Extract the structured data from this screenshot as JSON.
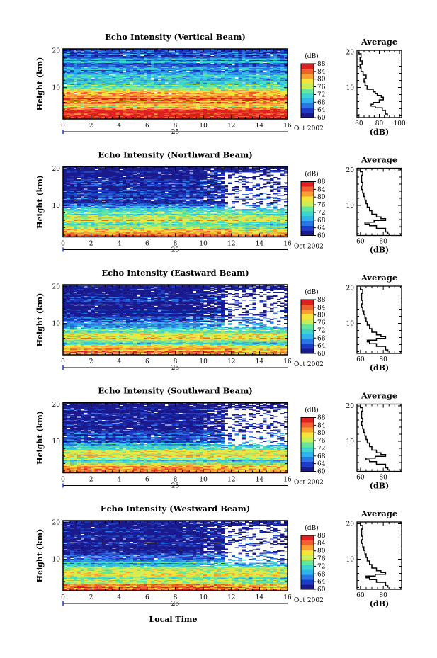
{
  "chart_data": {
    "type": "heatmap",
    "colorbar": {
      "unit": "(dB)",
      "ticks": [
        "60",
        "64",
        "68",
        "72",
        "76",
        "80",
        "84",
        "88"
      ],
      "range": [
        60,
        88
      ],
      "colors": [
        "#1a1a8c",
        "#1f3cc8",
        "#2a78e6",
        "#2fb4ee",
        "#3cd6cf",
        "#66e69a",
        "#c8ef5a",
        "#f6e43a",
        "#f9a030",
        "#f06030",
        "#e02020"
      ]
    },
    "x_axis": {
      "ticks": [
        "0",
        "2",
        "4",
        "6",
        "8",
        "10",
        "12",
        "14",
        "16"
      ],
      "range": [
        0,
        16
      ],
      "day_label": "25",
      "date_label": "Oct 2002",
      "label": "Local Time"
    },
    "y_axis": {
      "label": "Height (km)",
      "ticks": [
        "10",
        "20"
      ],
      "range": [
        1.5,
        20.5
      ]
    },
    "panels": [
      {
        "title": "Echo Intensity (Vertical Beam)",
        "beam": "vertical",
        "average": {
          "title": "Average",
          "xlabel": "(dB)",
          "xticks": [
            "60",
            "80",
            "100"
          ],
          "xlim": [
            58,
            102
          ],
          "profile": [
            [
              2.0,
              88
            ],
            [
              3.0,
              86
            ],
            [
              4.0,
              83
            ],
            [
              4.5,
              76
            ],
            [
              5.0,
              72
            ],
            [
              5.5,
              74
            ],
            [
              6.0,
              80
            ],
            [
              7.0,
              84
            ],
            [
              7.5,
              82
            ],
            [
              8.0,
              78
            ],
            [
              8.5,
              76
            ],
            [
              9.0,
              74
            ],
            [
              10.0,
              68
            ],
            [
              11.0,
              66
            ],
            [
              12.0,
              65
            ],
            [
              13.0,
              67
            ],
            [
              14.0,
              64
            ],
            [
              15.0,
              62
            ],
            [
              16.0,
              61
            ],
            [
              17.0,
              63
            ],
            [
              18.0,
              61
            ],
            [
              19.0,
              62
            ],
            [
              20.0,
              60
            ]
          ]
        },
        "profile_rows": [
          [
            2,
            86
          ],
          [
            3,
            87
          ],
          [
            4,
            85
          ],
          [
            5,
            80
          ],
          [
            6,
            82
          ],
          [
            7,
            84
          ],
          [
            8,
            83
          ],
          [
            9,
            80
          ],
          [
            10,
            74
          ],
          [
            11,
            71
          ],
          [
            12,
            70
          ],
          [
            13,
            71
          ],
          [
            14,
            69
          ],
          [
            15,
            67
          ],
          [
            16,
            66
          ],
          [
            17,
            68
          ],
          [
            18,
            66
          ],
          [
            19,
            65
          ],
          [
            20,
            63
          ]
        ]
      },
      {
        "title": "Echo Intensity (Northward Beam)",
        "beam": "north",
        "average": {
          "title": "Average",
          "xlabel": "(dB)",
          "xticks": [
            "60",
            "80"
          ],
          "xlim": [
            57,
            96
          ],
          "profile": [
            [
              2.0,
              84
            ],
            [
              3.0,
              82
            ],
            [
              4.0,
              74
            ],
            [
              4.5,
              68
            ],
            [
              5.0,
              64
            ],
            [
              5.5,
              72
            ],
            [
              6.0,
              82
            ],
            [
              6.5,
              78
            ],
            [
              7.0,
              74
            ],
            [
              8.0,
              70
            ],
            [
              9.0,
              68
            ],
            [
              10.0,
              66
            ],
            [
              11.0,
              65
            ],
            [
              12.0,
              64
            ],
            [
              13.0,
              63
            ],
            [
              14.0,
              62
            ],
            [
              15.0,
              61
            ],
            [
              16.0,
              62
            ],
            [
              17.0,
              61
            ],
            [
              18.0,
              61
            ],
            [
              19.0,
              62
            ],
            [
              20.0,
              60
            ]
          ]
        },
        "profile_rows": [
          [
            2,
            84
          ],
          [
            3,
            82
          ],
          [
            4,
            76
          ],
          [
            5,
            72
          ],
          [
            6,
            80
          ],
          [
            7,
            76
          ],
          [
            8,
            74
          ],
          [
            9,
            70
          ],
          [
            10,
            66
          ],
          [
            11,
            64
          ],
          [
            12,
            63
          ],
          [
            13,
            62
          ],
          [
            14,
            61
          ],
          [
            15,
            61
          ],
          [
            16,
            61
          ],
          [
            17,
            61
          ],
          [
            18,
            61
          ],
          [
            19,
            61
          ],
          [
            20,
            60
          ]
        ]
      },
      {
        "title": "Echo Intensity (Eastward Beam)",
        "beam": "east",
        "average": {
          "title": "Average",
          "xlabel": "(dB)",
          "xticks": [
            "60",
            "80"
          ],
          "xlim": [
            57,
            96
          ],
          "profile": [
            [
              2.0,
              84
            ],
            [
              3.0,
              82
            ],
            [
              4.0,
              74
            ],
            [
              4.5,
              68
            ],
            [
              5.0,
              66
            ],
            [
              5.5,
              74
            ],
            [
              6.0,
              82
            ],
            [
              6.5,
              78
            ],
            [
              7.0,
              74
            ],
            [
              8.0,
              70
            ],
            [
              9.0,
              68
            ],
            [
              10.0,
              66
            ],
            [
              11.0,
              65
            ],
            [
              12.0,
              64
            ],
            [
              13.0,
              63
            ],
            [
              14.0,
              62
            ],
            [
              15.0,
              61
            ],
            [
              16.0,
              62
            ],
            [
              17.0,
              61
            ],
            [
              18.0,
              61
            ],
            [
              19.0,
              62
            ],
            [
              20.0,
              60
            ]
          ]
        },
        "profile_rows": [
          [
            2,
            84
          ],
          [
            3,
            82
          ],
          [
            4,
            77
          ],
          [
            5,
            72
          ],
          [
            6,
            80
          ],
          [
            7,
            77
          ],
          [
            8,
            74
          ],
          [
            9,
            70
          ],
          [
            10,
            66
          ],
          [
            11,
            64
          ],
          [
            12,
            63
          ],
          [
            13,
            62
          ],
          [
            14,
            61
          ],
          [
            15,
            61
          ],
          [
            16,
            61
          ],
          [
            17,
            61
          ],
          [
            18,
            61
          ],
          [
            19,
            61
          ],
          [
            20,
            60
          ]
        ]
      },
      {
        "title": "Echo Intensity (Southward Beam)",
        "beam": "south",
        "average": {
          "title": "Average",
          "xlabel": "(dB)",
          "xticks": [
            "60",
            "80"
          ],
          "xlim": [
            57,
            96
          ],
          "profile": [
            [
              2.0,
              84
            ],
            [
              3.0,
              82
            ],
            [
              4.0,
              74
            ],
            [
              4.5,
              68
            ],
            [
              5.0,
              65
            ],
            [
              5.5,
              73
            ],
            [
              6.0,
              82
            ],
            [
              6.5,
              78
            ],
            [
              7.0,
              74
            ],
            [
              8.0,
              70
            ],
            [
              9.0,
              68
            ],
            [
              10.0,
              66
            ],
            [
              11.0,
              65
            ],
            [
              12.0,
              64
            ],
            [
              13.0,
              63
            ],
            [
              14.0,
              62
            ],
            [
              15.0,
              61
            ],
            [
              16.0,
              62
            ],
            [
              17.0,
              61
            ],
            [
              18.0,
              61
            ],
            [
              19.0,
              62
            ],
            [
              20.0,
              60
            ]
          ]
        },
        "profile_rows": [
          [
            2,
            84
          ],
          [
            3,
            82
          ],
          [
            4,
            76
          ],
          [
            5,
            72
          ],
          [
            6,
            80
          ],
          [
            7,
            76
          ],
          [
            8,
            74
          ],
          [
            9,
            70
          ],
          [
            10,
            66
          ],
          [
            11,
            64
          ],
          [
            12,
            63
          ],
          [
            13,
            62
          ],
          [
            14,
            61
          ],
          [
            15,
            61
          ],
          [
            16,
            61
          ],
          [
            17,
            61
          ],
          [
            18,
            61
          ],
          [
            19,
            61
          ],
          [
            20,
            60
          ]
        ]
      },
      {
        "title": "Echo Intensity (Westward Beam)",
        "beam": "west",
        "average": {
          "title": "Average",
          "xlabel": "(dB)",
          "xticks": [
            "60",
            "80"
          ],
          "xlim": [
            57,
            96
          ],
          "profile": [
            [
              2.0,
              84
            ],
            [
              3.0,
              82
            ],
            [
              4.0,
              74
            ],
            [
              4.5,
              68
            ],
            [
              5.0,
              65
            ],
            [
              5.5,
              73
            ],
            [
              6.0,
              82
            ],
            [
              6.5,
              78
            ],
            [
              7.0,
              74
            ],
            [
              8.0,
              70
            ],
            [
              9.0,
              68
            ],
            [
              10.0,
              66
            ],
            [
              11.0,
              65
            ],
            [
              12.0,
              64
            ],
            [
              13.0,
              63
            ],
            [
              14.0,
              62
            ],
            [
              15.0,
              61
            ],
            [
              16.0,
              62
            ],
            [
              17.0,
              61
            ],
            [
              18.0,
              61
            ],
            [
              19.0,
              62
            ],
            [
              20.0,
              60
            ]
          ]
        },
        "profile_rows": [
          [
            2,
            84
          ],
          [
            3,
            82
          ],
          [
            4,
            76
          ],
          [
            5,
            72
          ],
          [
            6,
            80
          ],
          [
            7,
            76
          ],
          [
            8,
            74
          ],
          [
            9,
            70
          ],
          [
            10,
            66
          ],
          [
            11,
            64
          ],
          [
            12,
            63
          ],
          [
            13,
            62
          ],
          [
            14,
            61
          ],
          [
            15,
            61
          ],
          [
            16,
            61
          ],
          [
            17,
            61
          ],
          [
            18,
            61
          ],
          [
            19,
            61
          ],
          [
            20,
            60
          ]
        ]
      }
    ]
  }
}
